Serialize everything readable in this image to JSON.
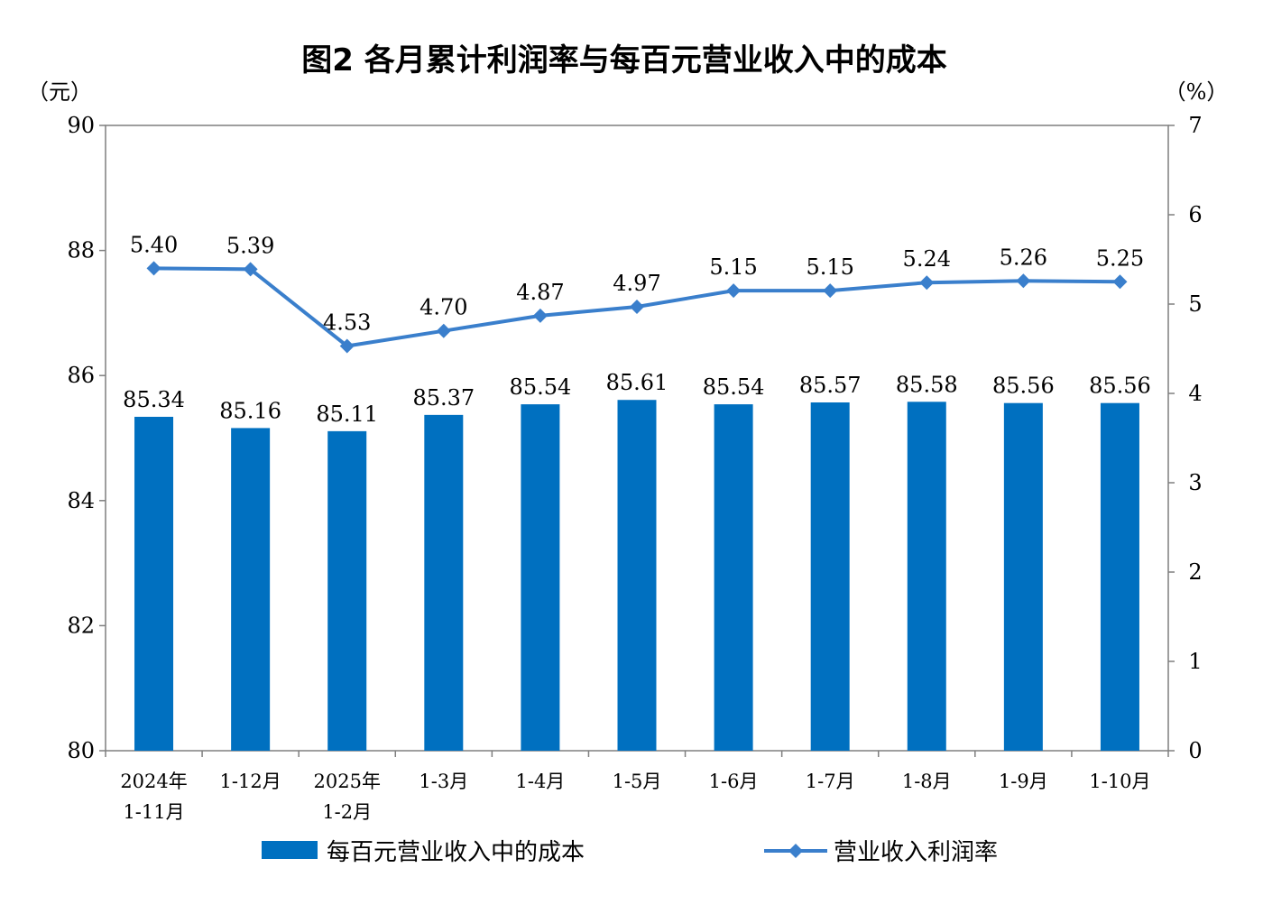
{
  "chart_data": {
    "type": "bar+line",
    "title": "图2  各月累计利润率与每百元营业收入中的成本",
    "left_unit": "（元）",
    "right_unit": "（%）",
    "categories": [
      [
        "2024年",
        "1-11月"
      ],
      [
        "1-12月"
      ],
      [
        "2025年",
        "1-2月"
      ],
      [
        "1-3月"
      ],
      [
        "1-4月"
      ],
      [
        "1-5月"
      ],
      [
        "1-6月"
      ],
      [
        "1-7月"
      ],
      [
        "1-8月"
      ],
      [
        "1-9月"
      ],
      [
        "1-10月"
      ]
    ],
    "left_axis": {
      "min": 80,
      "max": 90,
      "ticks": [
        "80",
        "82",
        "84",
        "86",
        "88",
        "90"
      ]
    },
    "right_axis": {
      "min": 0,
      "max": 7,
      "ticks": [
        "0",
        "1",
        "2",
        "3",
        "4",
        "5",
        "6",
        "7"
      ]
    },
    "series": [
      {
        "name": "每百元营业收入中的成本",
        "type": "bar",
        "axis": "left",
        "color": "#0070C0",
        "values": [
          85.34,
          85.16,
          85.11,
          85.37,
          85.54,
          85.61,
          85.54,
          85.57,
          85.58,
          85.56,
          85.56
        ],
        "labels": [
          "85.34",
          "85.16",
          "85.11",
          "85.37",
          "85.54",
          "85.61",
          "85.54",
          "85.57",
          "85.58",
          "85.56",
          "85.56"
        ]
      },
      {
        "name": "营业收入利润率",
        "type": "line",
        "axis": "right",
        "color": "#3A7FCC",
        "values": [
          5.4,
          5.39,
          4.53,
          4.7,
          4.87,
          4.97,
          5.15,
          5.15,
          5.24,
          5.26,
          5.25
        ],
        "labels": [
          "5.40",
          "5.39",
          "4.53",
          "4.70",
          "4.87",
          "4.97",
          "5.15",
          "5.15",
          "5.24",
          "5.26",
          "5.25"
        ]
      }
    ],
    "grid": false,
    "legend_position": "bottom"
  }
}
